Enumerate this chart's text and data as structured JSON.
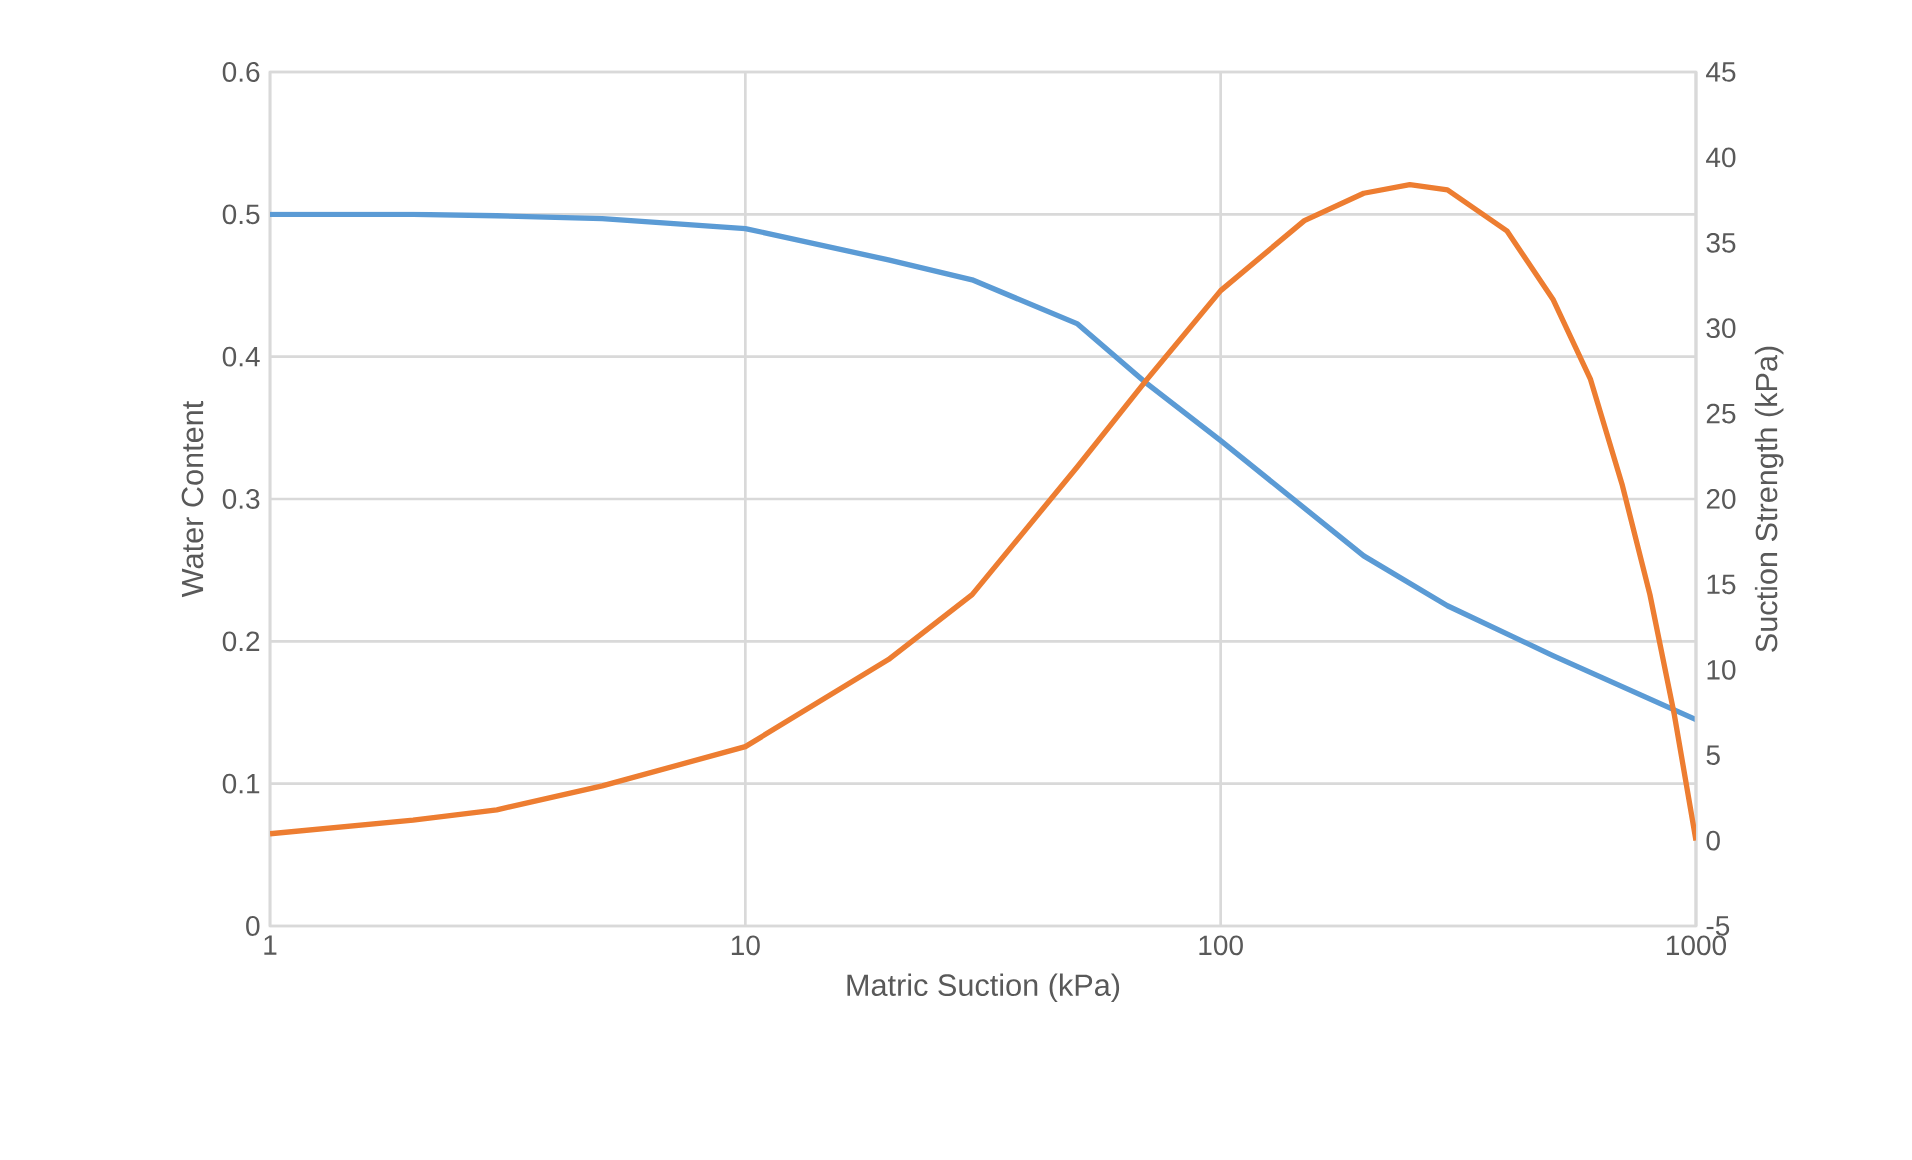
{
  "chart_data": {
    "type": "line",
    "xlabel": "Matric Suction (kPa)",
    "ylabel": "Water Content",
    "y2label": "Suction Strength (kPa)",
    "log": "x",
    "grid": true,
    "xlim": [
      1,
      1000
    ],
    "xticks": [
      1,
      10,
      100,
      1000
    ],
    "ylim": [
      0,
      0.6
    ],
    "yticks": [
      0,
      0.1,
      0.2,
      0.3,
      0.4,
      0.5,
      0.6
    ],
    "y2lim": [
      -5,
      45
    ],
    "y2ticks": [
      -5,
      0,
      5,
      10,
      15,
      20,
      25,
      30,
      35,
      40,
      45
    ],
    "series": [
      {
        "color": "#5b9bd5",
        "x": [
          1,
          2,
          3,
          5,
          10,
          20,
          30,
          50,
          70,
          100,
          200,
          300,
          500,
          1000
        ],
        "values": [
          0.5,
          0.5,
          0.499,
          0.497,
          0.49,
          0.468,
          0.454,
          0.423,
          0.381,
          0.341,
          0.26,
          0.225,
          0.19,
          0.145
        ]
      },
      {
        "color": "#ed7d31",
        "axis": "y2",
        "x": [
          1,
          2,
          3,
          5,
          10,
          20,
          30,
          50,
          70,
          100,
          150,
          200,
          250,
          300,
          400,
          500,
          600,
          700,
          800,
          900,
          1000
        ],
        "values": [
          0.4,
          1.2,
          1.8,
          3.2,
          5.5,
          10.6,
          14.4,
          21.9,
          27,
          32.2,
          36.3,
          37.9,
          38.4,
          38.1,
          35.7,
          31.7,
          27,
          20.8,
          14.4,
          7.4,
          0
        ]
      }
    ]
  }
}
